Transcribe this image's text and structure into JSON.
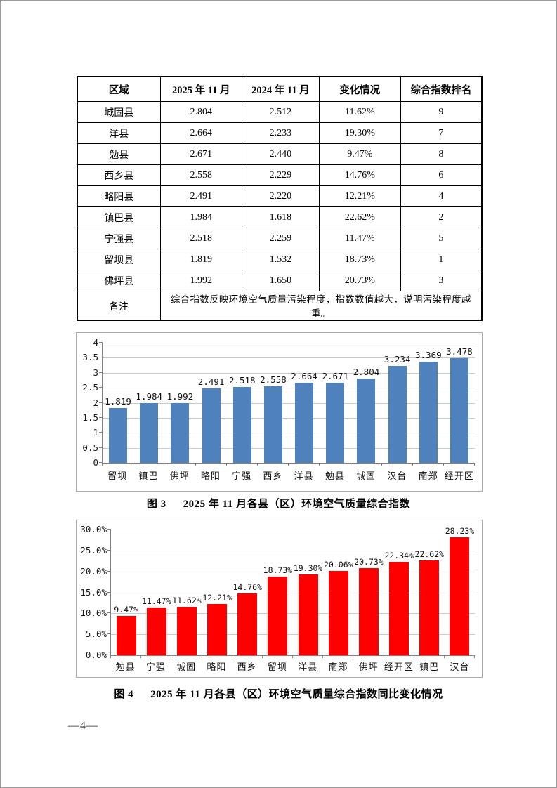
{
  "page": {
    "footer_page_number": "—4—"
  },
  "table": {
    "headers": [
      "区域",
      "2025 年 11 月",
      "2024 年 11 月",
      "变化情况",
      "综合指数排名"
    ],
    "rows": [
      [
        "城固县",
        "2.804",
        "2.512",
        "11.62%",
        "9"
      ],
      [
        "洋县",
        "2.664",
        "2.233",
        "19.30%",
        "7"
      ],
      [
        "勉县",
        "2.671",
        "2.440",
        "9.47%",
        "8"
      ],
      [
        "西乡县",
        "2.558",
        "2.229",
        "14.76%",
        "6"
      ],
      [
        "略阳县",
        "2.491",
        "2.220",
        "12.21%",
        "4"
      ],
      [
        "镇巴县",
        "1.984",
        "1.618",
        "22.62%",
        "2"
      ],
      [
        "宁强县",
        "2.518",
        "2.259",
        "11.47%",
        "5"
      ],
      [
        "留坝县",
        "1.819",
        "1.532",
        "18.73%",
        "1"
      ],
      [
        "佛坪县",
        "1.992",
        "1.650",
        "20.73%",
        "3"
      ]
    ],
    "note_label": "备注",
    "note_text": "综合指数反映环境空气质量污染程度，指数数值越大，说明污染程度越重。"
  },
  "chart_data": [
    {
      "type": "bar",
      "title": "2025 年 11 月各县（区）环境空气质量综合指数",
      "caption_prefix": "图 3",
      "categories": [
        "留坝",
        "镇巴",
        "佛坪",
        "略阳",
        "宁强",
        "西乡",
        "洋县",
        "勉县",
        "城固",
        "汉台",
        "南郑",
        "经开区"
      ],
      "values": [
        1.819,
        1.984,
        1.992,
        2.491,
        2.518,
        2.558,
        2.664,
        2.671,
        2.804,
        3.234,
        3.369,
        3.478
      ],
      "labels": [
        "1.819",
        "1.984",
        "1.992",
        "2.491",
        "2.518",
        "2.558",
        "2.664",
        "2.671",
        "2.804",
        "3.234",
        "3.369",
        "3.478"
      ],
      "xlabel": "",
      "ylabel": "",
      "ylim": [
        0,
        4
      ],
      "yticks": [
        "4",
        "3.5",
        "3",
        "2.5",
        "2",
        "1.5",
        "1",
        "0.5",
        "0"
      ],
      "grid": true,
      "legend": "none",
      "bar_color": "#4F81BD"
    },
    {
      "type": "bar",
      "title": "2025 年 11 月各县（区）环境空气质量综合指数同比变化情况",
      "caption_prefix": "图 4",
      "categories": [
        "勉县",
        "宁强",
        "城固",
        "略阳",
        "西乡",
        "留坝",
        "洋县",
        "南郑",
        "佛坪",
        "经开区",
        "镇巴",
        "汉台"
      ],
      "values": [
        9.47,
        11.47,
        11.62,
        12.21,
        14.76,
        18.73,
        19.3,
        20.06,
        20.73,
        22.34,
        22.62,
        28.23
      ],
      "labels": [
        "9.47%",
        "11.47%",
        "11.62%",
        "12.21%",
        "14.76%",
        "18.73%",
        "19.30%",
        "20.06%",
        "20.73%",
        "22.34%",
        "22.62%",
        "28.23%"
      ],
      "xlabel": "",
      "ylabel": "",
      "ylim": [
        0,
        30
      ],
      "yticks": [
        "30.0%",
        "25.0%",
        "20.0%",
        "15.0%",
        "10.0%",
        "5.0%",
        "0.0%"
      ],
      "grid": true,
      "legend": "none",
      "bar_color": "#FF0000"
    }
  ]
}
